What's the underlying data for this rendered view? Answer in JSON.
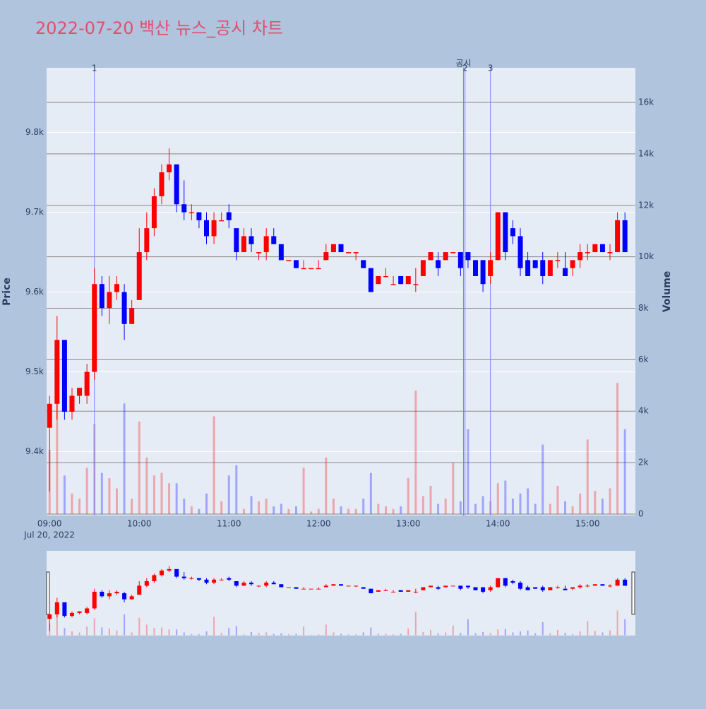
{
  "chart_data": {
    "type": "candlestick",
    "title": "2022-07-20 백산 뉴스_공시 차트",
    "y_title": "Price",
    "y2_title": "Volume",
    "x_date": "Jul 20, 2022",
    "up_color": "#ff0000",
    "down_color": "#0000ff",
    "x": [
      "09:00",
      "09:05",
      "09:10",
      "09:15",
      "09:20",
      "09:25",
      "09:30",
      "09:35",
      "09:40",
      "09:45",
      "09:50",
      "09:55",
      "10:00",
      "10:05",
      "10:10",
      "10:15",
      "10:20",
      "10:25",
      "10:30",
      "10:35",
      "10:40",
      "10:45",
      "10:50",
      "10:55",
      "11:00",
      "11:05",
      "11:10",
      "11:15",
      "11:20",
      "11:25",
      "11:30",
      "11:35",
      "11:40",
      "11:45",
      "11:50",
      "11:55",
      "12:00",
      "12:05",
      "12:10",
      "12:15",
      "12:20",
      "12:25",
      "12:30",
      "12:35",
      "12:40",
      "12:45",
      "12:50",
      "12:55",
      "13:00",
      "13:05",
      "13:10",
      "13:15",
      "13:20",
      "13:25",
      "13:30",
      "13:35",
      "13:40",
      "13:45",
      "13:50",
      "13:55",
      "14:00",
      "14:05",
      "14:10",
      "14:15",
      "14:20",
      "14:25",
      "14:30",
      "14:35",
      "14:40",
      "14:45",
      "14:50",
      "14:55",
      "15:00",
      "15:05",
      "15:10",
      "15:15",
      "15:20",
      "15:25"
    ],
    "open": [
      9430,
      9460,
      9540,
      9450,
      9470,
      9470,
      9500,
      9610,
      9580,
      9600,
      9600,
      9560,
      9590,
      9650,
      9680,
      9720,
      9750,
      9760,
      9710,
      9700,
      9700,
      9690,
      9670,
      9690,
      9700,
      9680,
      9650,
      9670,
      9650,
      9650,
      9670,
      9660,
      9640,
      9640,
      9630,
      9630,
      9630,
      9640,
      9650,
      9660,
      9650,
      9650,
      9640,
      9630,
      9610,
      9620,
      9610,
      9620,
      9610,
      9610,
      9620,
      9640,
      9640,
      9640,
      9650,
      9650,
      9650,
      9640,
      9640,
      9620,
      9640,
      9700,
      9680,
      9670,
      9640,
      9640,
      9640,
      9620,
      9640,
      9630,
      9630,
      9640,
      9650,
      9650,
      9660,
      9650,
      9650,
      9690
    ],
    "high": [
      9470,
      9570,
      9540,
      9480,
      9480,
      9510,
      9630,
      9620,
      9620,
      9620,
      9610,
      9590,
      9680,
      9700,
      9730,
      9760,
      9780,
      9760,
      9740,
      9710,
      9700,
      9700,
      9700,
      9700,
      9710,
      9680,
      9680,
      9680,
      9650,
      9680,
      9680,
      9660,
      9640,
      9640,
      9640,
      9630,
      9640,
      9660,
      9660,
      9660,
      9650,
      9650,
      9640,
      9630,
      9620,
      9630,
      9620,
      9620,
      9620,
      9630,
      9640,
      9650,
      9650,
      9650,
      9650,
      9650,
      9650,
      9640,
      9640,
      9650,
      9700,
      9700,
      9690,
      9680,
      9650,
      9640,
      9650,
      9640,
      9650,
      9650,
      9640,
      9660,
      9660,
      9660,
      9660,
      9660,
      9700,
      9700
    ],
    "low": [
      9350,
      9440,
      9440,
      9440,
      9460,
      9460,
      9490,
      9570,
      9560,
      9590,
      9540,
      9560,
      9590,
      9640,
      9670,
      9710,
      9740,
      9700,
      9690,
      9690,
      9680,
      9660,
      9660,
      9690,
      9680,
      9640,
      9650,
      9650,
      9640,
      9640,
      9660,
      9640,
      9640,
      9630,
      9630,
      9630,
      9630,
      9640,
      9650,
      9650,
      9650,
      9640,
      9630,
      9600,
      9610,
      9620,
      9610,
      9610,
      9610,
      9600,
      9620,
      9640,
      9620,
      9640,
      9650,
      9620,
      9630,
      9620,
      9600,
      9610,
      9640,
      9640,
      9660,
      9620,
      9620,
      9630,
      9610,
      9620,
      9630,
      9620,
      9620,
      9630,
      9640,
      9650,
      9650,
      9640,
      9650,
      9650
    ],
    "close": [
      9460,
      9540,
      9450,
      9470,
      9480,
      9500,
      9610,
      9580,
      9600,
      9610,
      9560,
      9580,
      9650,
      9680,
      9720,
      9750,
      9760,
      9710,
      9700,
      9700,
      9690,
      9670,
      9690,
      9690,
      9690,
      9650,
      9670,
      9660,
      9650,
      9670,
      9660,
      9640,
      9640,
      9630,
      9630,
      9630,
      9630,
      9650,
      9660,
      9650,
      9650,
      9650,
      9630,
      9600,
      9620,
      9620,
      9610,
      9610,
      9620,
      9610,
      9640,
      9650,
      9630,
      9650,
      9650,
      9630,
      9640,
      9620,
      9610,
      9640,
      9700,
      9650,
      9670,
      9630,
      9620,
      9630,
      9620,
      9640,
      9640,
      9620,
      9640,
      9650,
      9650,
      9660,
      9650,
      9650,
      9690,
      9650
    ],
    "volume": [
      2500,
      4500,
      1500,
      800,
      600,
      1800,
      3500,
      1600,
      1400,
      1000,
      4300,
      600,
      3600,
      2200,
      1500,
      1600,
      1200,
      1200,
      600,
      300,
      200,
      800,
      3800,
      500,
      1500,
      1900,
      200,
      700,
      500,
      600,
      300,
      400,
      200,
      300,
      1800,
      100,
      200,
      2200,
      600,
      300,
      200,
      200,
      600,
      1600,
      400,
      300,
      200,
      300,
      1400,
      4800,
      700,
      1100,
      400,
      600,
      2000,
      500,
      3300,
      400,
      700,
      500,
      1200,
      1300,
      600,
      800,
      1000,
      400,
      2700,
      400,
      1100,
      500,
      300,
      800,
      2900,
      900,
      600,
      1000,
      5100,
      3300
    ],
    "xlim": [
      "08:58",
      "15:32"
    ],
    "xticks": [
      "09:00",
      "10:00",
      "11:00",
      "12:00",
      "13:00",
      "14:00",
      "15:00"
    ],
    "ylim": [
      9320,
      9881
    ],
    "yticks": [
      {
        "value": 9400,
        "label": "9.4k"
      },
      {
        "value": 9500,
        "label": "9.5k"
      },
      {
        "value": 9600,
        "label": "9.6k"
      },
      {
        "value": 9700,
        "label": "9.7k"
      },
      {
        "value": 9800,
        "label": "9.8k"
      }
    ],
    "y2lim": [
      -55,
      17345
    ],
    "y2ticks": [
      0,
      {
        "value": 2000,
        "label": "2k"
      },
      {
        "value": 4000,
        "label": "4k"
      },
      {
        "value": 6000,
        "label": "6k"
      },
      {
        "value": 8000,
        "label": "8k"
      },
      {
        "value": 10000,
        "label": "10k"
      },
      {
        "value": 12000,
        "label": "12k"
      },
      {
        "value": 14000,
        "label": "14k"
      },
      {
        "value": 16000,
        "label": "16k"
      }
    ],
    "vlines": [
      {
        "x": "09:30",
        "label": "1",
        "color": "#8080ff"
      },
      {
        "x": "13:38",
        "label": "2",
        "color": "#8080ff"
      },
      {
        "x": "13:37",
        "label": "공시",
        "color": "#60a060"
      },
      {
        "x": "13:55",
        "label": "3",
        "color": "#8080ff"
      }
    ]
  }
}
